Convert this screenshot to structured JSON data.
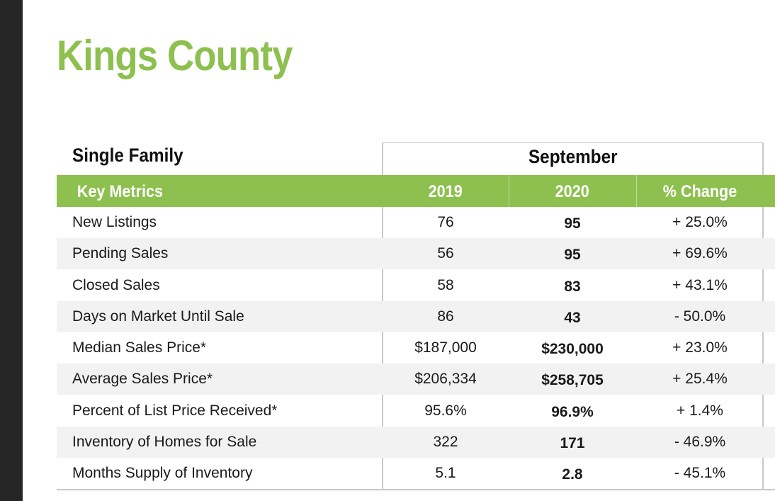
{
  "title": "Kings County",
  "section": "Single Family",
  "period": "September",
  "headers": {
    "metric": "Key Metrics",
    "year1": "2019",
    "year2": "2020",
    "change": "% Change"
  },
  "rows": [
    {
      "metric": "New Listings",
      "y2019": "76",
      "y2020": "95",
      "change": "+ 25.0%"
    },
    {
      "metric": "Pending Sales",
      "y2019": "56",
      "y2020": "95",
      "change": "+ 69.6%"
    },
    {
      "metric": "Closed Sales",
      "y2019": "58",
      "y2020": "83",
      "change": "+ 43.1%"
    },
    {
      "metric": "Days on Market Until Sale",
      "y2019": "86",
      "y2020": "43",
      "change": "- 50.0%"
    },
    {
      "metric": "Median Sales Price*",
      "y2019": "$187,000",
      "y2020": "$230,000",
      "change": "+ 23.0%"
    },
    {
      "metric": "Average Sales Price*",
      "y2019": "$206,334",
      "y2020": "$258,705",
      "change": "+ 25.4%"
    },
    {
      "metric": "Percent of List Price Received*",
      "y2019": "95.6%",
      "y2020": "96.9%",
      "change": "+ 1.4%"
    },
    {
      "metric": "Inventory of Homes for Sale",
      "y2019": "322",
      "y2020": "171",
      "change": "- 46.9%"
    },
    {
      "metric": "Months Supply of Inventory",
      "y2019": "5.1",
      "y2020": "2.8",
      "change": "- 45.1%"
    }
  ],
  "colors": {
    "accent_green": "#8dc04f",
    "row_shade": "#f2f2f2",
    "rule_gray": "#c9c9c9"
  }
}
